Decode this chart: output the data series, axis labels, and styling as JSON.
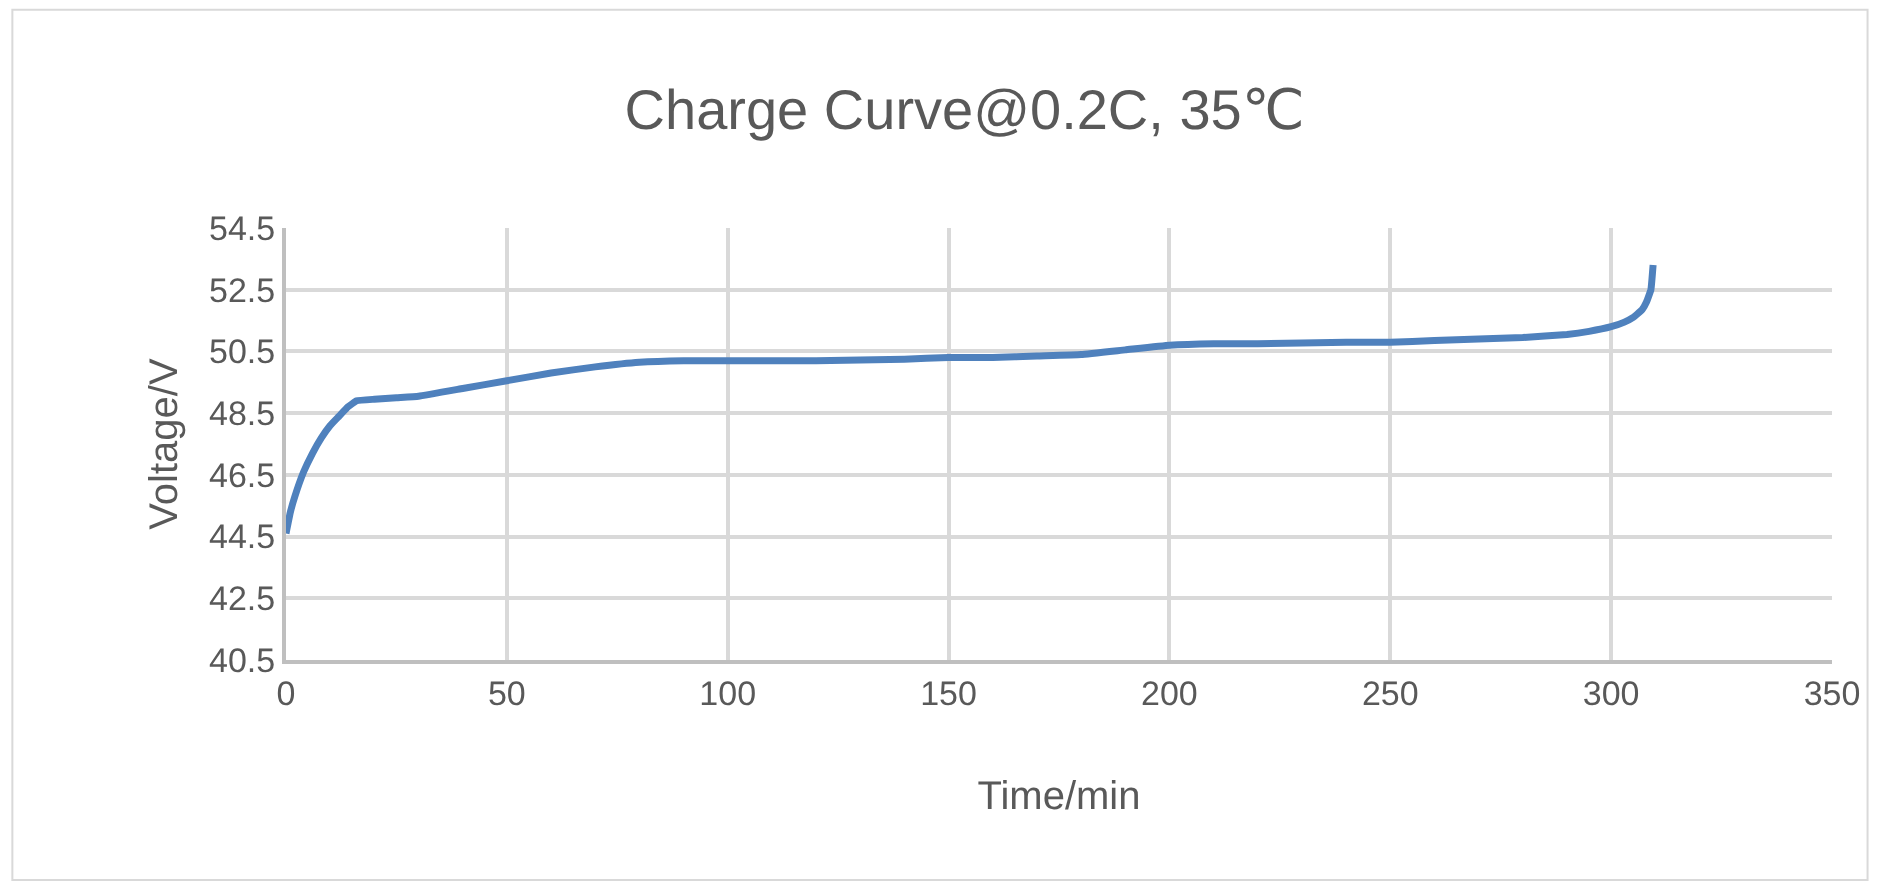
{
  "chart_data": {
    "type": "line",
    "title": "Charge Curve@0.2C, 35℃",
    "xlabel": "Time/min",
    "ylabel": "Voltage/V",
    "x": [
      0,
      1,
      2,
      4,
      6,
      8,
      10,
      12,
      14,
      16,
      20,
      25,
      30,
      40,
      50,
      60,
      70,
      80,
      90,
      100,
      120,
      140,
      150,
      160,
      170,
      180,
      190,
      200,
      210,
      220,
      240,
      250,
      260,
      270,
      280,
      290,
      295,
      300,
      303,
      305,
      307,
      308,
      309,
      309.5
    ],
    "series": [
      {
        "color": "#4f81bd",
        "values": [
          44.6,
          45.3,
          45.8,
          46.6,
          47.2,
          47.7,
          48.1,
          48.4,
          48.7,
          48.9,
          48.95,
          49.0,
          49.05,
          49.3,
          49.55,
          49.8,
          50.0,
          50.15,
          50.2,
          50.2,
          50.2,
          50.25,
          50.3,
          50.3,
          50.35,
          50.4,
          50.55,
          50.7,
          50.75,
          50.75,
          50.8,
          50.8,
          50.85,
          50.9,
          50.95,
          51.05,
          51.15,
          51.3,
          51.45,
          51.6,
          51.85,
          52.1,
          52.5,
          53.3
        ]
      }
    ],
    "xlim": [
      0,
      350
    ],
    "xticks": [
      0,
      50,
      100,
      150,
      200,
      250,
      300,
      350
    ],
    "ylim": [
      40.5,
      54.5
    ],
    "yticks": [
      {
        "value": 40.5,
        "label": "40.5"
      },
      {
        "value": 42.5,
        "label": "42.5"
      },
      {
        "value": 44.5,
        "label": "44.5"
      },
      {
        "value": 46.5,
        "label": "46.5"
      },
      {
        "value": 48.5,
        "label": "48.5"
      },
      {
        "value": 50.5,
        "label": "50.5"
      },
      {
        "value": 52.5,
        "label": "52.5"
      },
      {
        "value": 54.5,
        "label": "54.5"
      }
    ],
    "grid": true,
    "marker": "none",
    "line_style": "solid"
  }
}
